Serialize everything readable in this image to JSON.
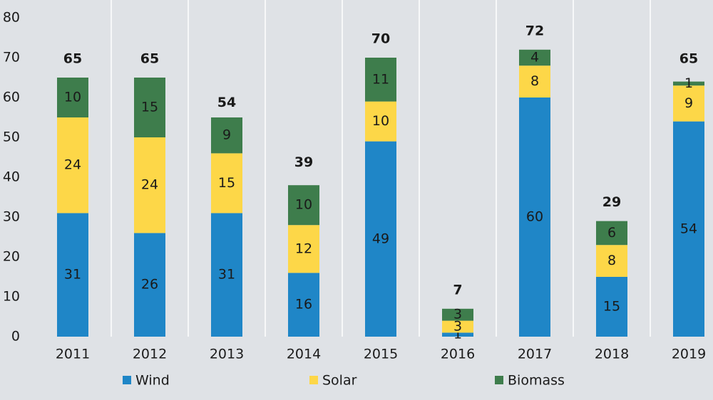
{
  "chart_data": {
    "type": "stacked-bar",
    "categories": [
      "2011",
      "2012",
      "2013",
      "2014",
      "2015",
      "2016",
      "2017",
      "2018",
      "2019"
    ],
    "series": [
      {
        "name": "Wind",
        "color": "#1f86c7",
        "values": [
          31,
          26,
          31,
          16,
          49,
          1,
          60,
          15,
          54
        ]
      },
      {
        "name": "Solar",
        "color": "#fdd748",
        "values": [
          24,
          24,
          15,
          12,
          10,
          3,
          8,
          8,
          9
        ]
      },
      {
        "name": "Biomass",
        "color": "#3e7d4c",
        "values": [
          10,
          15,
          9,
          10,
          11,
          3,
          4,
          6,
          1
        ]
      }
    ],
    "totals": [
      65,
      65,
      54,
      39,
      70,
      7,
      72,
      29,
      65
    ],
    "ylim": [
      0,
      80
    ],
    "yticks": [
      0,
      10,
      20,
      30,
      40,
      50,
      60,
      70,
      80
    ],
    "legend": "bottom"
  }
}
